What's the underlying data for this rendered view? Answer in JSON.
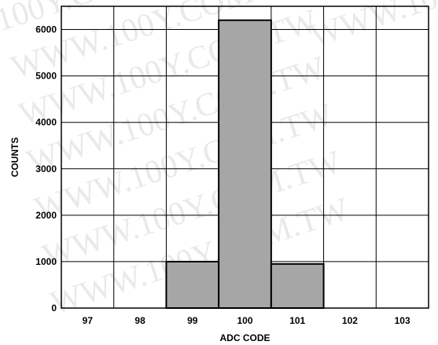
{
  "chart_data": {
    "type": "bar",
    "title": "",
    "xlabel": "ADC CODE",
    "ylabel": "COUNTS",
    "categories": [
      "97",
      "98",
      "99",
      "100",
      "101",
      "102",
      "103"
    ],
    "values": [
      0,
      0,
      1000,
      6200,
      950,
      0,
      0
    ],
    "ylim": [
      0,
      6500
    ],
    "yticks": [
      0,
      1000,
      2000,
      3000,
      4000,
      5000,
      6000
    ],
    "grid": true,
    "bar_color": "#a6a6a6"
  },
  "watermark": {
    "texts": [
      "100Y.COM.TW",
      "WWW.100Y.COM.TW",
      "WWW.100Y.COM.TW",
      "WWW.100Y.COM.TW",
      "WWW.100Y.COM.TW",
      "WWW.100Y.COM.TW",
      "WWW.100Y.COM.TW",
      "WWW.100Y.COM.TW"
    ]
  }
}
